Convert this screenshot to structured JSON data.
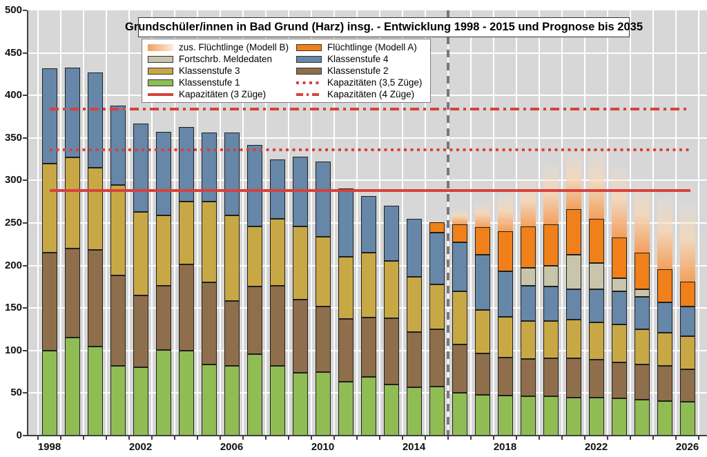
{
  "title": {
    "text": "Grundschüler/innen in Bad Grund (Harz) insg. - Entwicklung 1998 - 2015 und Prognose bis 2035"
  },
  "colors": {
    "plot_bg": "#D7D7D7",
    "grid": "#FFFFFF",
    "k1": "#90BC54",
    "k2": "#8F6E4C",
    "k3": "#C8A845",
    "k4": "#6687A8",
    "meldedaten": "#C9C5AA",
    "fluechtlinge_a": "#F0801A",
    "fluechtlinge_b_bottom": "#F2A05E",
    "fluechtlinge_b_top": "#FCF3EA",
    "capacity_red": "#D8413C",
    "divider_gray": "#787878",
    "axis": "#3F3F3F"
  },
  "axes": {
    "y_labels": [
      "0",
      "50",
      "100",
      "150",
      "200",
      "250",
      "300",
      "350",
      "400",
      "450",
      "500"
    ],
    "y_min": 0,
    "y_max": 500,
    "y_step": 50,
    "x_labeled_years": [
      "1998",
      "2002",
      "2006",
      "2010",
      "2014",
      "2018",
      "2022",
      "2026"
    ]
  },
  "capacity_lines": [
    {
      "label": "Kapazitäten (3 Züge)",
      "value": 288,
      "style": "solid"
    },
    {
      "label": "Kapazitäten (3,5 Züge)",
      "value": 336,
      "style": "dotted"
    },
    {
      "label": "Kapazitäten (4 Züge)",
      "value": 384,
      "style": "dashdot"
    }
  ],
  "divider": {
    "after_year": 2015
  },
  "legend": {
    "items": [
      {
        "label": "zus. Flüchtlinge (Modell B)",
        "swatch": "gradient"
      },
      {
        "label": "Fortschrb. Meldedaten",
        "swatch": "meldedaten"
      },
      {
        "label": "Klassenstufe 3",
        "swatch": "k3"
      },
      {
        "label": "Klassenstufe 1",
        "swatch": "k1"
      },
      {
        "label": "Kapazitäten (3 Züge)",
        "swatch": "line-solid"
      },
      {
        "label": "Flüchtlinge (Modell A)",
        "swatch": "fluechtlinge_a"
      },
      {
        "label": "Klassenstufe 4",
        "swatch": "k4"
      },
      {
        "label": "Klassenstufe 2",
        "swatch": "k2"
      },
      {
        "label": "Kapazitäten (3,5 Züge)",
        "swatch": "line-dotted"
      },
      {
        "label": "Kapazitäten (4 Züge)",
        "swatch": "line-dashdot"
      }
    ]
  },
  "chart_data": {
    "type": "bar",
    "stacked": true,
    "title": "Grundschüler/innen in Bad Grund (Harz) insg. - Entwicklung 1998 - 2015 und Prognose bis 2035",
    "ylim": [
      0,
      500
    ],
    "grid": true,
    "legend_position": "top-left",
    "categories": [
      1998,
      1999,
      2000,
      2001,
      2002,
      2003,
      2004,
      2005,
      2006,
      2007,
      2008,
      2009,
      2010,
      2011,
      2012,
      2013,
      2014,
      2015,
      2016,
      2017,
      2018,
      2019,
      2020,
      2021,
      2022,
      2023,
      2024,
      2025,
      2026
    ],
    "series": [
      {
        "name": "Klassenstufe 1",
        "color_key": "k1",
        "values": [
          100,
          115,
          105,
          82,
          80,
          101,
          100,
          84,
          82,
          96,
          82,
          74,
          75,
          63,
          69,
          60,
          57,
          58,
          50,
          48,
          47,
          46,
          46,
          45,
          45,
          44,
          42,
          41,
          40
        ]
      },
      {
        "name": "Klassenstufe 2",
        "color_key": "k2",
        "values": [
          115,
          105,
          113,
          106,
          85,
          75,
          101,
          96,
          76,
          79,
          94,
          86,
          77,
          74,
          70,
          78,
          65,
          67,
          57,
          49,
          45,
          44,
          45,
          46,
          44,
          42,
          42,
          41,
          38
        ]
      },
      {
        "name": "Klassenstufe 3",
        "color_key": "k3",
        "values": [
          105,
          107,
          97,
          107,
          98,
          83,
          74,
          95,
          101,
          71,
          79,
          86,
          82,
          73,
          76,
          67,
          65,
          53,
          63,
          51,
          48,
          45,
          44,
          45,
          44,
          45,
          41,
          39,
          39
        ]
      },
      {
        "name": "Klassenstufe 4",
        "color_key": "k4",
        "values": [
          112,
          106,
          112,
          93,
          104,
          98,
          88,
          81,
          97,
          96,
          70,
          82,
          88,
          81,
          67,
          65,
          68,
          61,
          57,
          65,
          53,
          41,
          40,
          36,
          39,
          39,
          38,
          36,
          35
        ]
      },
      {
        "name": "Fortschrb. Meldedaten",
        "color_key": "meldedaten",
        "values": [
          0,
          0,
          0,
          0,
          0,
          0,
          0,
          0,
          0,
          0,
          0,
          0,
          0,
          0,
          0,
          0,
          0,
          0,
          0,
          0,
          0,
          21,
          25,
          41,
          31,
          15,
          9,
          0,
          0
        ]
      },
      {
        "name": "Flüchtlinge (Modell A)",
        "color_key": "fluechtlinge_a",
        "values": [
          0,
          0,
          0,
          0,
          0,
          0,
          0,
          0,
          0,
          0,
          0,
          0,
          0,
          0,
          0,
          0,
          0,
          12,
          21,
          32,
          47,
          49,
          48,
          53,
          52,
          48,
          43,
          39,
          29
        ]
      },
      {
        "name": "zus. Flüchtlinge (Modell B)",
        "color_key": "fluechtlinge_b",
        "values": [
          0,
          0,
          0,
          0,
          0,
          0,
          0,
          0,
          0,
          0,
          0,
          0,
          0,
          0,
          0,
          0,
          0,
          0,
          18,
          29,
          45,
          55,
          70,
          67,
          78,
          82,
          83,
          85,
          91
        ]
      }
    ]
  }
}
